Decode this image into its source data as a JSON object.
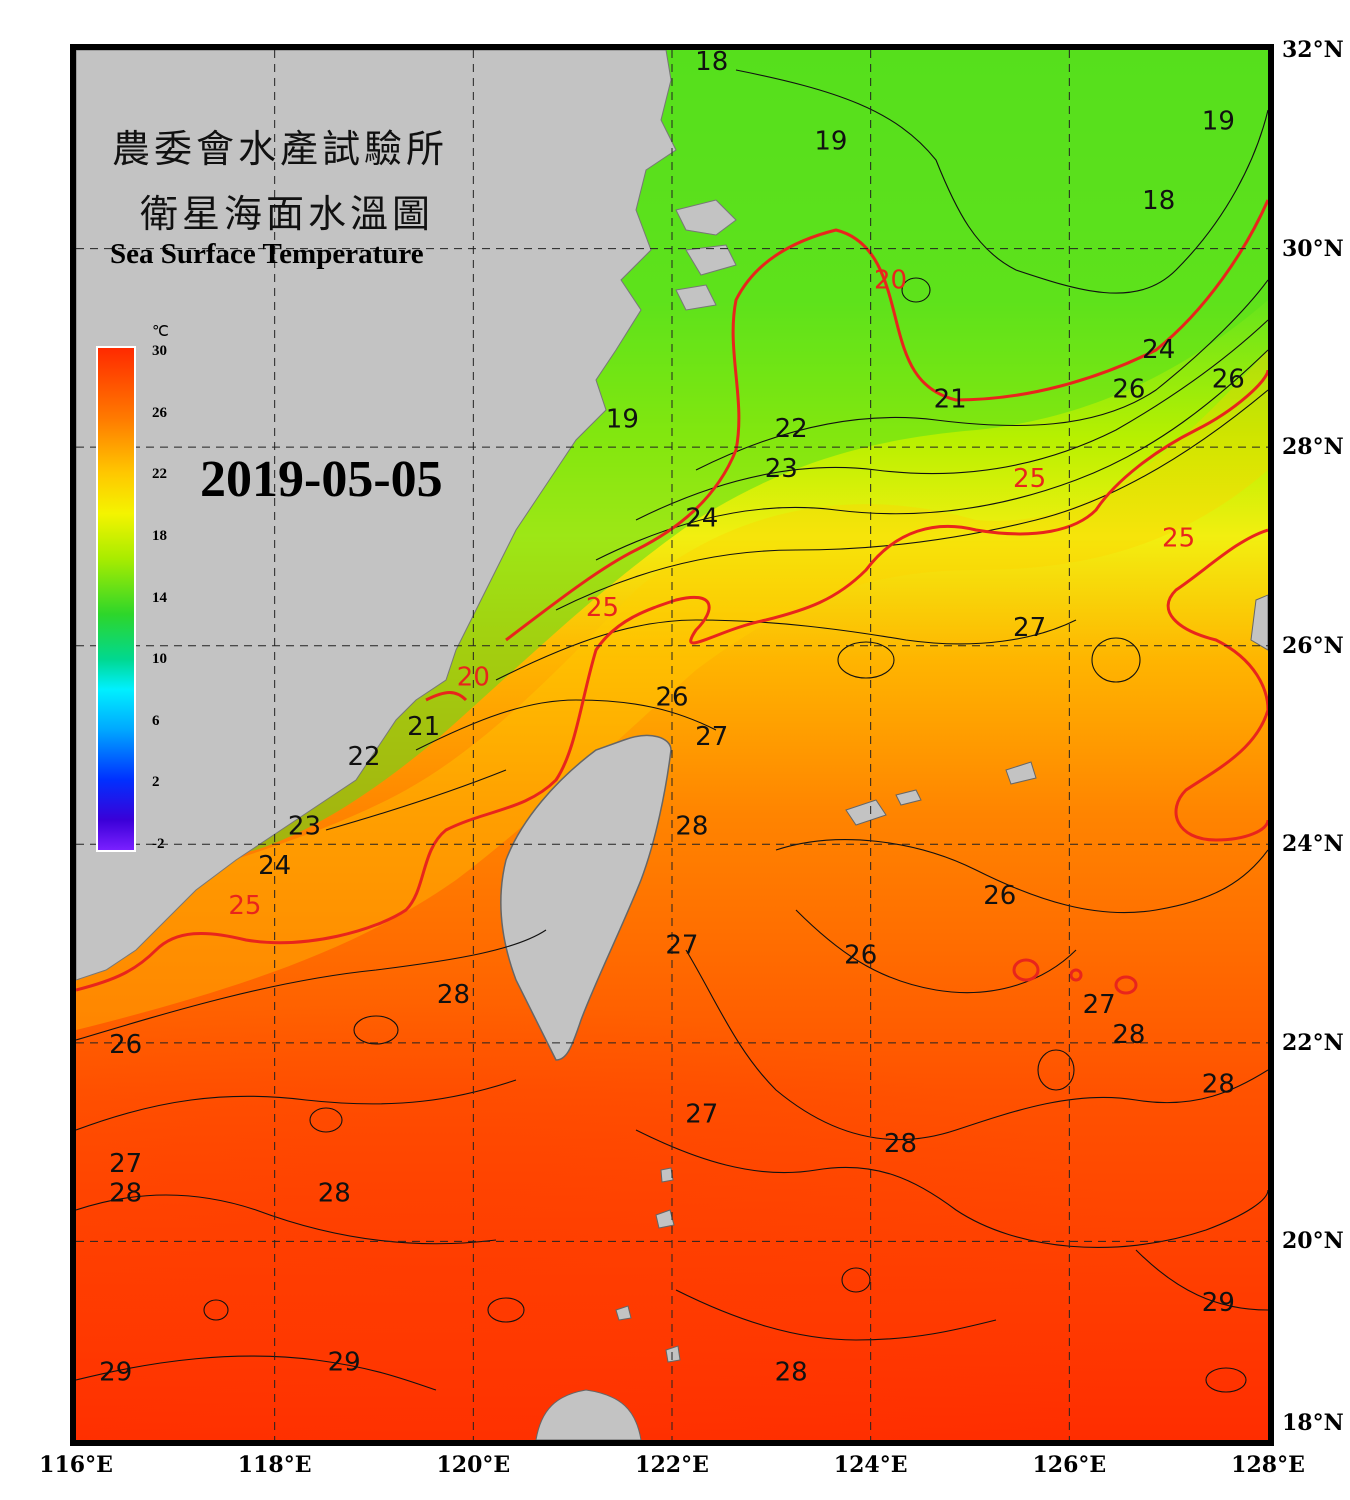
{
  "title": {
    "zh_line1": "農委會水產試驗所",
    "zh_line2": "衛星海面水溫圖",
    "en": "Sea Surface Temperature"
  },
  "date": "2019-05-05",
  "colorbar": {
    "unit": "℃",
    "ticks": [
      "30",
      "26",
      "22",
      "18",
      "14",
      "10",
      "6",
      "2",
      "-2"
    ]
  },
  "axes": {
    "lat_labels": [
      "32°N",
      "30°N",
      "28°N",
      "26°N",
      "24°N",
      "22°N",
      "20°N",
      "18°N"
    ],
    "lon_labels": [
      "116°E",
      "118°E",
      "120°E",
      "122°E",
      "124°E",
      "126°E",
      "128°E"
    ]
  },
  "colors": {
    "land": "#c3c3c3",
    "contour": "#111111",
    "highlight_contour": "#e8251c",
    "grid": "#222222"
  },
  "contour_labels": [
    {
      "text": "18",
      "lon": 122.4,
      "lat": 31.8
    },
    {
      "text": "19",
      "lon": 123.6,
      "lat": 31.0
    },
    {
      "text": "19",
      "lon": 127.5,
      "lat": 31.2
    },
    {
      "text": "18",
      "lon": 126.9,
      "lat": 30.4
    },
    {
      "text": "20",
      "lon": 124.2,
      "lat": 29.6,
      "red": true
    },
    {
      "text": "21",
      "lon": 124.8,
      "lat": 28.4
    },
    {
      "text": "24",
      "lon": 126.9,
      "lat": 28.9
    },
    {
      "text": "26",
      "lon": 126.6,
      "lat": 28.5
    },
    {
      "text": "26",
      "lon": 127.6,
      "lat": 28.6
    },
    {
      "text": "19",
      "lon": 121.5,
      "lat": 28.2
    },
    {
      "text": "22",
      "lon": 123.2,
      "lat": 28.1
    },
    {
      "text": "23",
      "lon": 123.1,
      "lat": 27.7
    },
    {
      "text": "25",
      "lon": 125.6,
      "lat": 27.6,
      "red": true
    },
    {
      "text": "25",
      "lon": 127.1,
      "lat": 27.0,
      "red": true
    },
    {
      "text": "24",
      "lon": 122.3,
      "lat": 27.2
    },
    {
      "text": "25",
      "lon": 121.3,
      "lat": 26.3,
      "red": true
    },
    {
      "text": "27",
      "lon": 125.6,
      "lat": 26.1
    },
    {
      "text": "20",
      "lon": 120.0,
      "lat": 25.6,
      "red": true
    },
    {
      "text": "21",
      "lon": 119.5,
      "lat": 25.1
    },
    {
      "text": "26",
      "lon": 122.0,
      "lat": 25.4
    },
    {
      "text": "27",
      "lon": 122.4,
      "lat": 25.0
    },
    {
      "text": "22",
      "lon": 118.9,
      "lat": 24.8
    },
    {
      "text": "23",
      "lon": 118.3,
      "lat": 24.1
    },
    {
      "text": "28",
      "lon": 122.2,
      "lat": 24.1
    },
    {
      "text": "24",
      "lon": 118.0,
      "lat": 23.7
    },
    {
      "text": "25",
      "lon": 117.7,
      "lat": 23.3,
      "red": true
    },
    {
      "text": "26",
      "lon": 125.3,
      "lat": 23.4
    },
    {
      "text": "27",
      "lon": 122.1,
      "lat": 22.9
    },
    {
      "text": "26",
      "lon": 123.9,
      "lat": 22.8
    },
    {
      "text": "28",
      "lon": 119.8,
      "lat": 22.4
    },
    {
      "text": "27",
      "lon": 126.3,
      "lat": 22.3
    },
    {
      "text": "26",
      "lon": 116.5,
      "lat": 21.9
    },
    {
      "text": "28",
      "lon": 126.6,
      "lat": 22.0
    },
    {
      "text": "28",
      "lon": 127.5,
      "lat": 21.5
    },
    {
      "text": "27",
      "lon": 122.3,
      "lat": 21.2
    },
    {
      "text": "28",
      "lon": 124.3,
      "lat": 20.9
    },
    {
      "text": "27",
      "lon": 116.5,
      "lat": 20.7
    },
    {
      "text": "28",
      "lon": 116.5,
      "lat": 20.4
    },
    {
      "text": "28",
      "lon": 118.6,
      "lat": 20.4
    },
    {
      "text": "29",
      "lon": 127.5,
      "lat": 19.3
    },
    {
      "text": "29",
      "lon": 118.7,
      "lat": 18.7
    },
    {
      "text": "29",
      "lon": 116.4,
      "lat": 18.6
    },
    {
      "text": "28",
      "lon": 123.2,
      "lat": 18.6
    }
  ]
}
